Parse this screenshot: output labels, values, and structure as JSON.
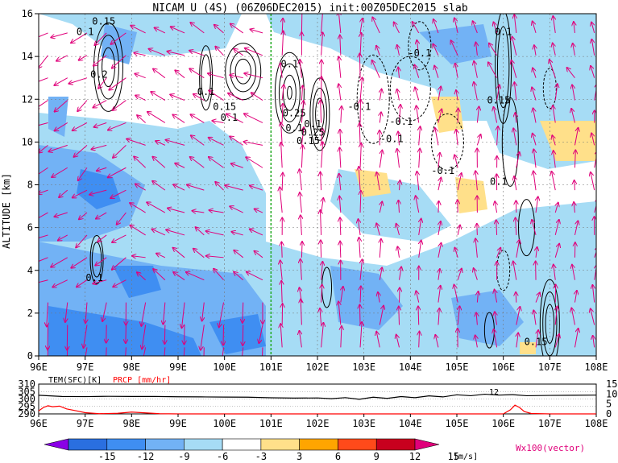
{
  "chart_data": [
    {
      "type": "heatmap",
      "title": "NICAM U (4S) (06Z06DEC2015) init:00Z05DEC2015 slab",
      "xlabel": "",
      "ylabel": "ALTITUDE [km]",
      "x_ticks": [
        "96E",
        "97E",
        "98E",
        "99E",
        "100E",
        "101E",
        "102E",
        "103E",
        "104E",
        "105E",
        "106E",
        "107E",
        "108E"
      ],
      "y_ticks": [
        "0",
        "2",
        "4",
        "6",
        "8",
        "10",
        "12",
        "14",
        "16"
      ],
      "xlim": [
        96,
        108
      ],
      "ylim": [
        0,
        16
      ],
      "grid": true,
      "reference_line_lon": 101,
      "contour_labels": [
        {
          "text": "0.15",
          "lon": 97.4,
          "alt": 15.5
        },
        {
          "text": "0.1",
          "lon": 97.0,
          "alt": 15.0
        },
        {
          "text": "0.2",
          "lon": 97.3,
          "alt": 13.0
        },
        {
          "text": "0.1",
          "lon": 99.6,
          "alt": 12.2
        },
        {
          "text": "0.1",
          "lon": 101.4,
          "alt": 13.5
        },
        {
          "text": "0.15",
          "lon": 100.0,
          "alt": 11.5
        },
        {
          "text": "0.1",
          "lon": 100.1,
          "alt": 11.0
        },
        {
          "text": "0.25",
          "lon": 101.5,
          "alt": 11.2
        },
        {
          "text": "0.25",
          "lon": 101.9,
          "alt": 10.3
        },
        {
          "text": "0.1",
          "lon": 101.9,
          "alt": 10.7
        },
        {
          "text": "0.1",
          "lon": 101.5,
          "alt": 10.5
        },
        {
          "text": "0.15",
          "lon": 101.8,
          "alt": 9.9
        },
        {
          "text": "-0.1",
          "lon": 104.2,
          "alt": 14.0
        },
        {
          "text": "-0.1",
          "lon": 102.9,
          "alt": 11.5
        },
        {
          "text": "-0.1",
          "lon": 103.8,
          "alt": 10.8
        },
        {
          "text": "-0.1",
          "lon": 103.6,
          "alt": 10.0
        },
        {
          "text": "-0.1",
          "lon": 104.7,
          "alt": 8.5
        },
        {
          "text": "0.1",
          "lon": 106.0,
          "alt": 15.0
        },
        {
          "text": "0.15",
          "lon": 105.9,
          "alt": 11.8
        },
        {
          "text": "0.1",
          "lon": 105.9,
          "alt": 8.0
        },
        {
          "text": "0.1",
          "lon": 97.2,
          "alt": 3.5
        },
        {
          "text": "0.15",
          "lon": 106.7,
          "alt": 0.5
        }
      ]
    },
    {
      "type": "line",
      "left_label": "TEM(SFC)[K]",
      "right_label": "PRCP [mm/hr]",
      "left_ticks": [
        "310",
        "305",
        "300",
        "295",
        "290"
      ],
      "right_ticks": [
        "15",
        "10",
        "5",
        "0"
      ],
      "left_ylim": [
        290,
        310
      ],
      "right_ylim": [
        0,
        15
      ],
      "inline_label": "12",
      "series": [
        {
          "name": "TEM(SFC)[K]",
          "color": "#000000",
          "x": [
            96,
            96.5,
            97,
            97.5,
            98,
            98.5,
            99,
            99.5,
            100,
            100.5,
            101,
            101.5,
            102,
            102.3,
            102.6,
            102.9,
            103.2,
            103.5,
            103.8,
            104.1,
            104.4,
            104.7,
            105,
            105.3,
            105.6,
            105.9,
            106.2,
            106.5,
            107,
            107.5,
            108
          ],
          "values": [
            302.5,
            301.7,
            301.6,
            301.8,
            301.7,
            301.7,
            301.5,
            301.4,
            301.3,
            301.2,
            300.8,
            300.6,
            300.7,
            300.2,
            300.9,
            299.8,
            301.2,
            300.4,
            301.6,
            300.9,
            302.1,
            301.4,
            302.8,
            302.2,
            303.2,
            302.6,
            302.9,
            302.2,
            302.4,
            302.5,
            302.6
          ]
        },
        {
          "name": "PRCP [mm/hr]",
          "color": "#ff0000",
          "x": [
            96,
            96.1,
            96.2,
            96.3,
            96.45,
            96.6,
            96.8,
            97,
            97.3,
            97.7,
            98,
            98.3,
            98.6,
            99,
            100,
            102,
            104,
            106,
            106.15,
            106.25,
            106.35,
            106.45,
            106.6,
            107,
            108
          ],
          "values": [
            1.5,
            3.2,
            4.1,
            3.6,
            3.9,
            2.5,
            1.6,
            0.6,
            0.1,
            0.3,
            0.9,
            0.5,
            0.1,
            0,
            0,
            0,
            0,
            0,
            2.0,
            4.4,
            3.2,
            1.2,
            0.2,
            0,
            0
          ]
        }
      ],
      "x_ticks": [
        "96E",
        "97E",
        "98E",
        "99E",
        "100E",
        "101E",
        "102E",
        "103E",
        "104E",
        "105E",
        "106E",
        "107E",
        "108E"
      ]
    },
    {
      "type": "colorbar",
      "ticks": [
        "-15",
        "-12",
        "-9",
        "-6",
        "-3",
        "3",
        "6",
        "9",
        "12",
        "15"
      ],
      "unit": "[m/s]",
      "vector_label": "Wx100(vector)",
      "colors": [
        "#8a00e6",
        "#2a6fe0",
        "#3f8ef2",
        "#72b2f5",
        "#a6dcf5",
        "#ffffff",
        "#ffe08a",
        "#ffa500",
        "#ff4a1a",
        "#c8001e",
        "#e0007a"
      ]
    }
  ]
}
